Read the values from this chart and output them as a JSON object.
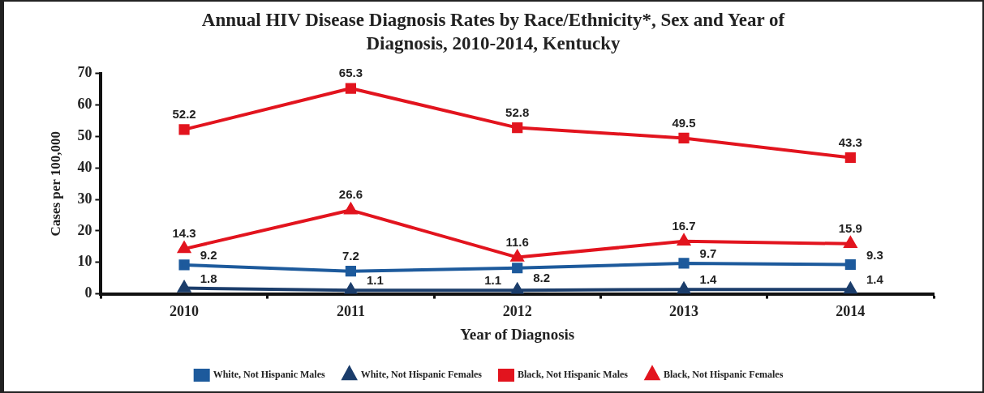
{
  "chart_data": {
    "type": "line",
    "title": "Annual HIV Disease Diagnosis Rates by Race/Ethnicity*, Sex and Year of Diagnosis, 2010-2014, Kentucky",
    "xlabel": "Year of Diagnosis",
    "ylabel": "Cases per 100,000",
    "categories": [
      "2010",
      "2011",
      "2012",
      "2013",
      "2014"
    ],
    "series": [
      {
        "name": "White, Not Hispanic Males",
        "color": "#1d5a9c",
        "marker": "square",
        "values": [
          9.2,
          7.2,
          8.2,
          9.7,
          9.3
        ]
      },
      {
        "name": "White, Not Hispanic Females",
        "color": "#1b3d6b",
        "marker": "triangle",
        "values": [
          1.8,
          1.1,
          1.1,
          1.4,
          1.4
        ]
      },
      {
        "name": "Black, Not Hispanic Males",
        "color": "#e2141e",
        "marker": "square",
        "values": [
          52.2,
          65.3,
          52.8,
          49.5,
          43.3
        ]
      },
      {
        "name": "Black, Not Hispanic Females",
        "color": "#e2141e",
        "marker": "triangle",
        "values": [
          14.3,
          26.6,
          11.6,
          16.7,
          15.9
        ]
      }
    ],
    "ylim": [
      0,
      70
    ],
    "yticks": [
      0,
      10,
      20,
      30,
      40,
      50,
      60,
      70
    ],
    "grid": false,
    "legend": "bottom",
    "data_labels": true,
    "line_style": "solid"
  }
}
